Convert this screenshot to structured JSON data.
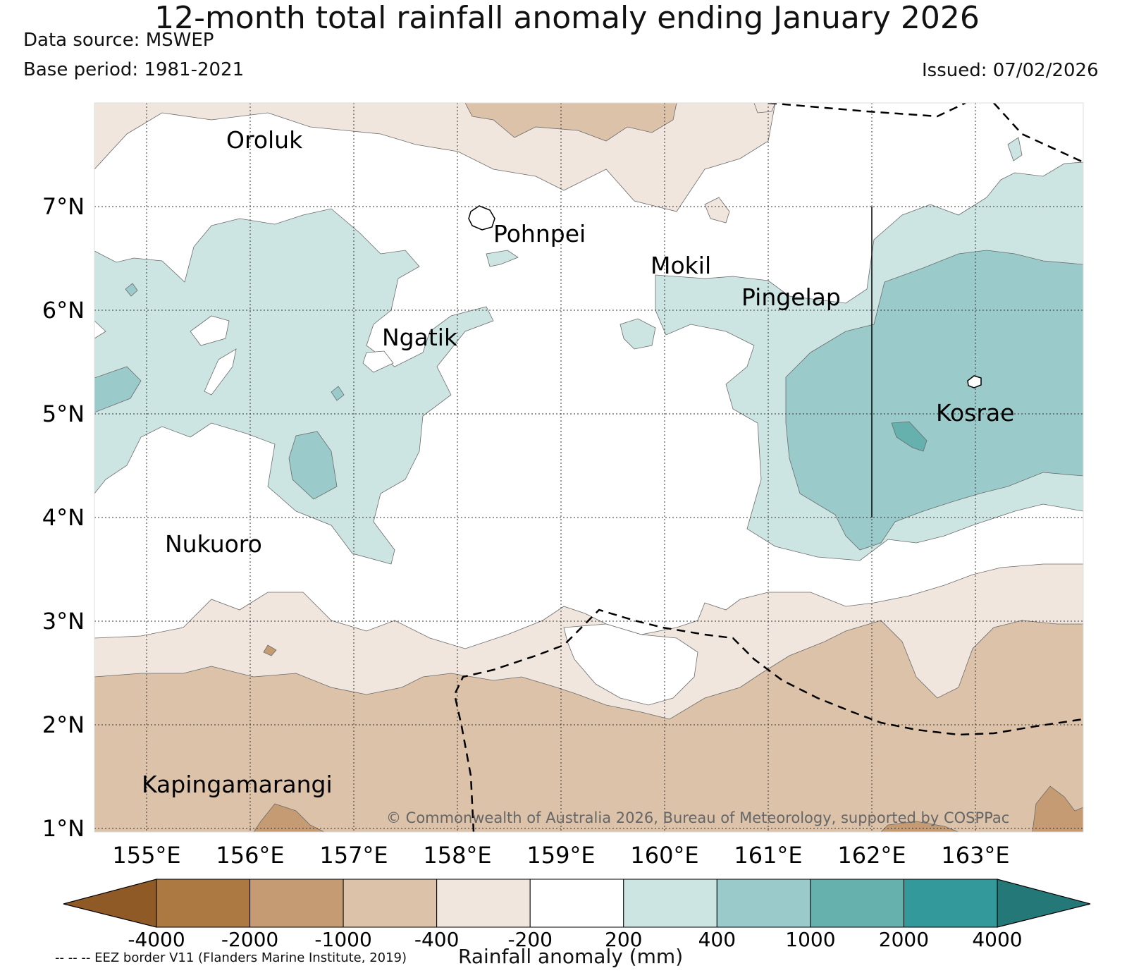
{
  "header": {
    "title": "12-month total rainfall anomaly ending January 2026",
    "data_source": "Data source: MSWEP",
    "base_period": "Base period: 1981-2021",
    "issued": "Issued: 07/02/2026"
  },
  "map": {
    "lat_labels": [
      "7°N",
      "6°N",
      "5°N",
      "4°N",
      "3°N",
      "2°N",
      "1°N"
    ],
    "lon_labels": [
      "155°E",
      "156°E",
      "157°E",
      "158°E",
      "159°E",
      "160°E",
      "161°E",
      "162°E",
      "163°E"
    ],
    "places": [
      "Oroluk",
      "Pohnpei",
      "Mokil",
      "Pingelap",
      "Ngatik",
      "Kosrae",
      "Nukuoro",
      "Kapingamarangi"
    ],
    "copyright": "© Commonwealth of Australia 2026, Bureau of Meteorology, supported by COSPPac",
    "category_colors": {
      "below_-4000": "#8f5a26",
      "-4000_-2000": "#ad7942",
      "-2000_-1000": "#c49b72",
      "-1000_-400": "#dbc2a9",
      "-400_-200": "#f0e6de",
      "-200_200": "#ffffff",
      "200_400": "#cce5e3",
      "400_1000": "#9acbca",
      "1000_2000": "#66b0ae",
      "2000_4000": "#33999a",
      "above_4000": "#247878"
    }
  },
  "colorbar": {
    "ticks": [
      "-4000",
      "-2000",
      "-1000",
      "-400",
      "-200",
      "200",
      "400",
      "1000",
      "2000",
      "4000"
    ],
    "colors": [
      "#8f5a26",
      "#ad7942",
      "#c49b72",
      "#dbc2a9",
      "#f0e6de",
      "#ffffff",
      "#cce5e3",
      "#9acbca",
      "#66b0ae",
      "#33999a",
      "#247878"
    ],
    "label": "Rainfall anomaly (mm)"
  },
  "legend": {
    "eez_note": "-- -- -- EEZ border V11 (Flanders Marine Institute, 2019)"
  }
}
